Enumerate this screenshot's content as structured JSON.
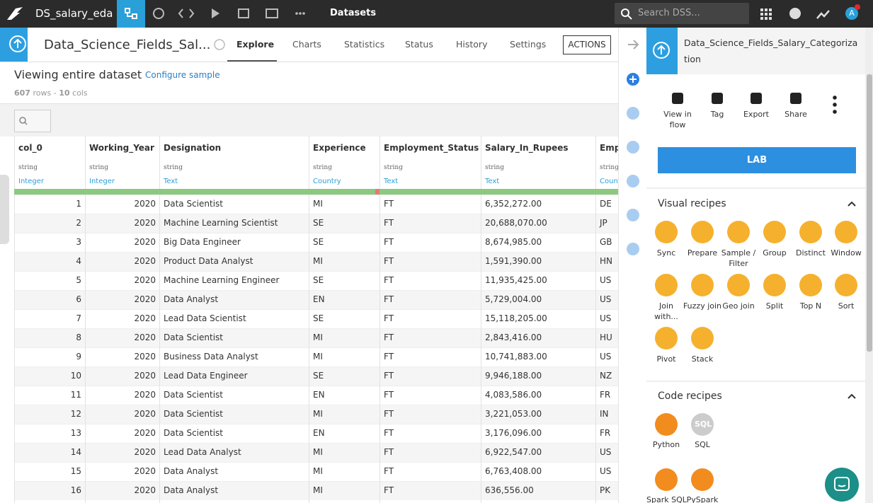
{
  "topbar": {
    "project": "DS_salary_eda",
    "section": "Datasets",
    "search_placeholder": "Search DSS...",
    "avatar": "A"
  },
  "header": {
    "dataset_name": "Data_Science_Fields_Sal...",
    "tabs": [
      "Explore",
      "Charts",
      "Statistics",
      "Status",
      "History",
      "Settings"
    ],
    "actions": "ACTIONS"
  },
  "summary": {
    "title": "Viewing entire dataset",
    "configure": "Configure sample",
    "rows": "607",
    "rows_label": "rows",
    "sep": "-",
    "cols": "10",
    "cols_label": "cols"
  },
  "table": {
    "columns": [
      {
        "name": "col_0",
        "type": "string",
        "meaning": "Integer"
      },
      {
        "name": "Working_Year",
        "type": "string",
        "meaning": "Integer"
      },
      {
        "name": "Designation",
        "type": "string",
        "meaning": "Text"
      },
      {
        "name": "Experience",
        "type": "string",
        "meaning": "Country"
      },
      {
        "name": "Employment_Status",
        "type": "string",
        "meaning": "Text"
      },
      {
        "name": "Salary_In_Rupees",
        "type": "string",
        "meaning": "Text"
      },
      {
        "name": "Emp",
        "type": "string",
        "meaning": "Count"
      }
    ],
    "rows": [
      [
        "1",
        "2020",
        "Data Scientist",
        "MI",
        "FT",
        "6,352,272.00",
        "DE"
      ],
      [
        "2",
        "2020",
        "Machine Learning Scientist",
        "SE",
        "FT",
        "20,688,070.00",
        "JP"
      ],
      [
        "3",
        "2020",
        "Big Data Engineer",
        "SE",
        "FT",
        "8,674,985.00",
        "GB"
      ],
      [
        "4",
        "2020",
        "Product Data Analyst",
        "MI",
        "FT",
        "1,591,390.00",
        "HN"
      ],
      [
        "5",
        "2020",
        "Machine Learning Engineer",
        "SE",
        "FT",
        "11,935,425.00",
        "US"
      ],
      [
        "6",
        "2020",
        "Data Analyst",
        "EN",
        "FT",
        "5,729,004.00",
        "US"
      ],
      [
        "7",
        "2020",
        "Lead Data Scientist",
        "SE",
        "FT",
        "15,118,205.00",
        "US"
      ],
      [
        "8",
        "2020",
        "Data Scientist",
        "MI",
        "FT",
        "2,843,416.00",
        "HU"
      ],
      [
        "9",
        "2020",
        "Business Data Analyst",
        "MI",
        "FT",
        "10,741,883.00",
        "US"
      ],
      [
        "10",
        "2020",
        "Lead Data Engineer",
        "SE",
        "FT",
        "9,946,188.00",
        "NZ"
      ],
      [
        "11",
        "2020",
        "Data Scientist",
        "EN",
        "FT",
        "4,083,586.00",
        "FR"
      ],
      [
        "12",
        "2020",
        "Data Scientist",
        "MI",
        "FT",
        "3,221,053.00",
        "IN"
      ],
      [
        "13",
        "2020",
        "Data Scientist",
        "EN",
        "FT",
        "3,176,096.00",
        "FR"
      ],
      [
        "14",
        "2020",
        "Lead Data Analyst",
        "MI",
        "FT",
        "6,922,547.00",
        "US"
      ],
      [
        "15",
        "2020",
        "Data Analyst",
        "MI",
        "FT",
        "6,763,408.00",
        "US"
      ],
      [
        "16",
        "2020",
        "Data Analyst",
        "MI",
        "FT",
        "636,556.00",
        "PK"
      ]
    ]
  },
  "panel": {
    "title": "Data_Science_Fields_Salary_Categorization",
    "actions": [
      "View in flow",
      "Tag",
      "Export",
      "Share"
    ],
    "lab": "LAB",
    "visual_title": "Visual recipes",
    "visual": [
      "Sync",
      "Prepare",
      "Sample / Filter",
      "Group",
      "Distinct",
      "Window",
      "Join with...",
      "Fuzzy join",
      "Geo join",
      "Split",
      "Top N",
      "Sort",
      "Pivot",
      "Stack"
    ],
    "code_title": "Code recipes",
    "code": [
      "Python",
      "SQL",
      "Spark SQL",
      "PySpark"
    ],
    "sql_icon": "SQL"
  }
}
